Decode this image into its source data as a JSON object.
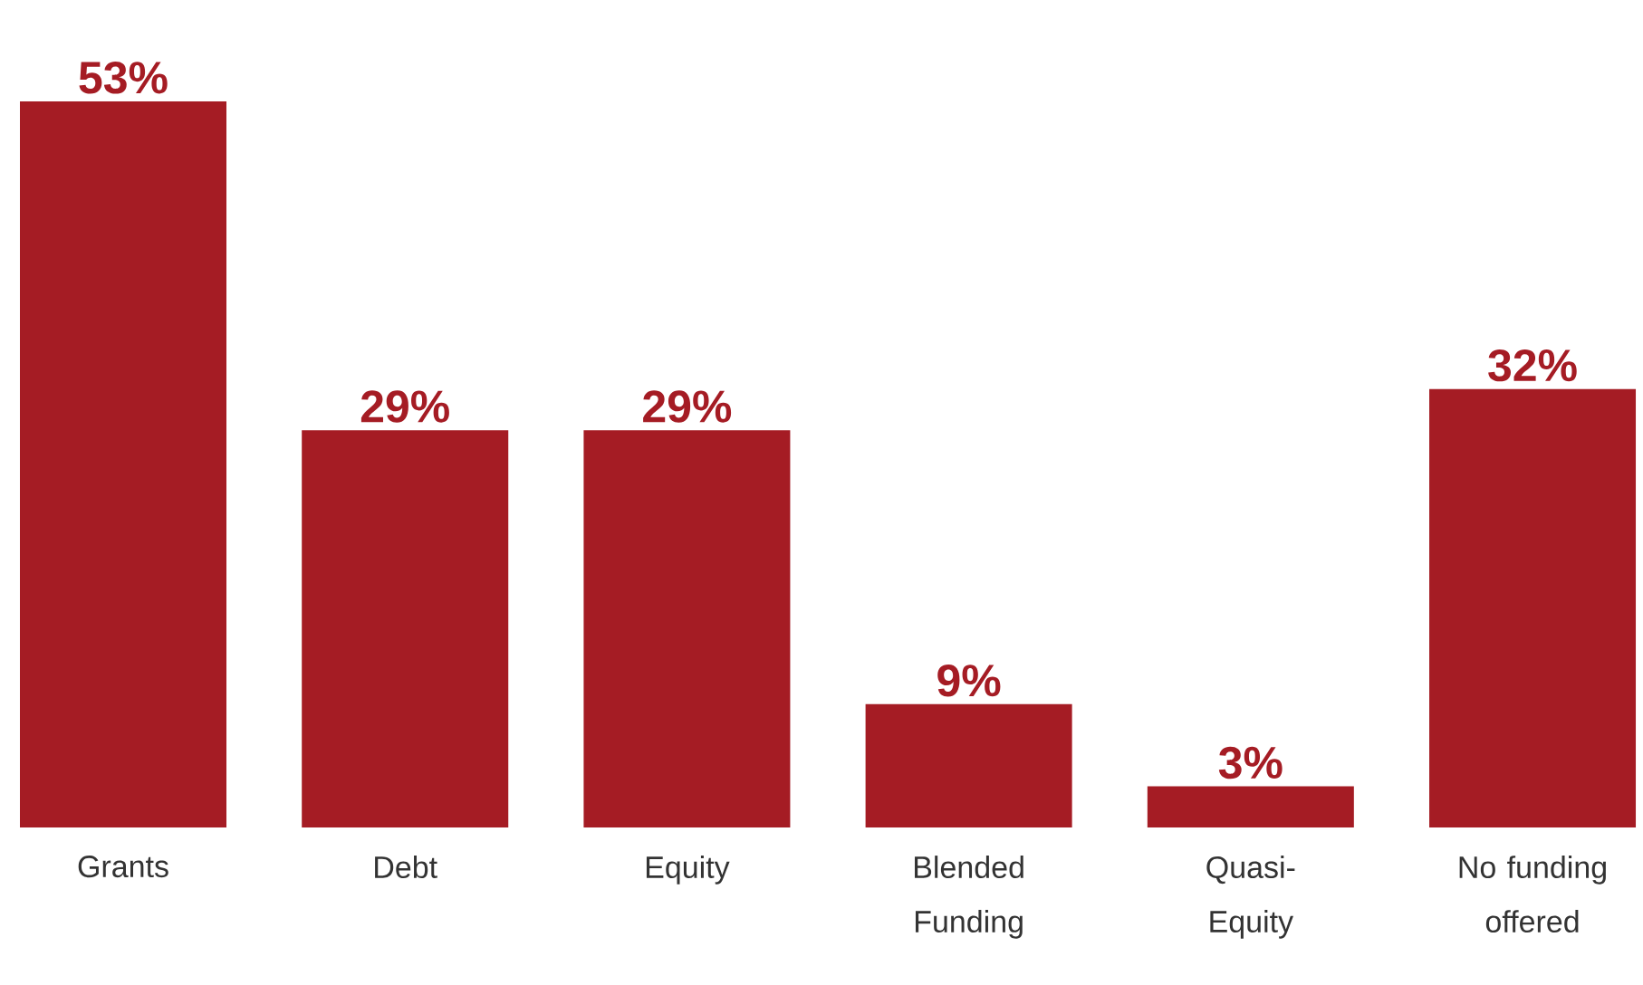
{
  "chart_data": {
    "type": "bar",
    "categories": [
      "Grants",
      "Debt",
      "Equity",
      "Blended Funding",
      "Quasi-Equity",
      "No funding offered"
    ],
    "values": [
      53,
      29,
      29,
      9,
      3,
      32
    ],
    "value_labels": [
      "53%",
      "29%",
      "29%",
      "9%",
      "3%",
      "32%"
    ],
    "color": "#a51c24"
  }
}
